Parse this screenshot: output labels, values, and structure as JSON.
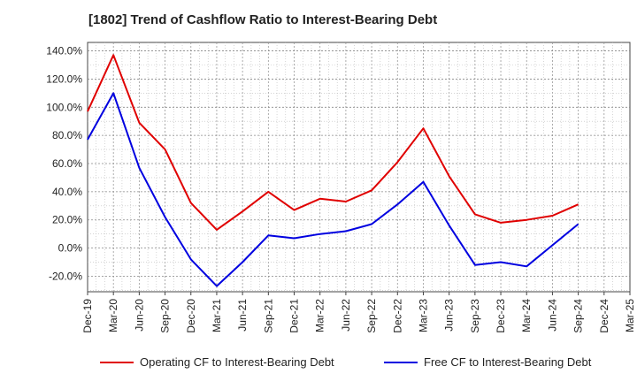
{
  "chart_data": {
    "type": "line",
    "title": "[1802]  Trend of Cashflow Ratio to Interest-Bearing Debt",
    "categories": [
      "Dec-19",
      "Mar-20",
      "Jun-20",
      "Sep-20",
      "Dec-20",
      "Mar-21",
      "Jun-21",
      "Sep-21",
      "Dec-21",
      "Mar-22",
      "Jun-22",
      "Sep-22",
      "Dec-22",
      "Mar-23",
      "Jun-23",
      "Sep-23",
      "Dec-23",
      "Mar-24",
      "Jun-24",
      "Sep-24",
      "Dec-24",
      "Mar-25"
    ],
    "xtick_labels": [
      "Dec-19",
      "Mar-20",
      "Jun-20",
      "Sep-20",
      "Dec-20",
      "Mar-21",
      "Jun-21",
      "Sep-21",
      "Dec-21",
      "Mar-22",
      "Jun-22",
      "Sep-22",
      "Dec-22",
      "Mar-23",
      "Jun-23",
      "Sep-23",
      "Dec-23",
      "Mar-24",
      "Jun-24",
      "Sep-24",
      "Dec-24",
      "Mar-25"
    ],
    "ytick_values": [
      140,
      120,
      100,
      80,
      60,
      40,
      20,
      0,
      -20
    ],
    "ytick_labels": [
      "140.0%",
      "120.0%",
      "100.0%",
      "80.0%",
      "60.0%",
      "40.0%",
      "20.0%",
      "0.0%",
      "-20.0%"
    ],
    "ylim": [
      -31,
      146
    ],
    "grid": true,
    "legend_position": "bottom",
    "series": [
      {
        "name": "Operating CF to Interest-Bearing Debt",
        "color": "#e00000",
        "values": [
          97,
          137,
          89,
          70,
          32,
          13,
          26,
          40,
          27,
          35,
          33,
          41,
          61,
          85,
          51,
          24,
          18,
          20,
          23,
          31,
          null,
          null
        ]
      },
      {
        "name": "Free CF to Interest-Bearing Debt",
        "color": "#0000e0",
        "values": [
          77,
          110,
          57,
          22,
          -8,
          -27,
          -10,
          9,
          7,
          10,
          12,
          17,
          31,
          47,
          16,
          -12,
          -10,
          -13,
          2,
          17,
          null,
          null
        ]
      }
    ]
  }
}
